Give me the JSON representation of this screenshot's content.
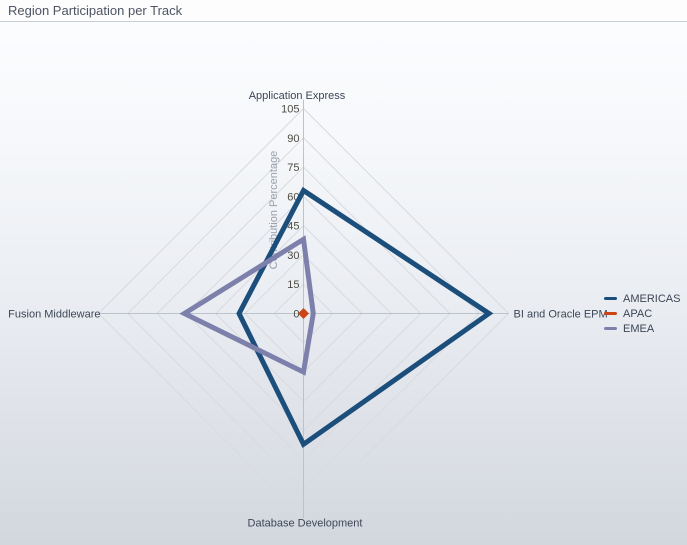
{
  "header": {
    "title": "Region Participation per Track"
  },
  "chart_data": {
    "type": "radar",
    "title": "Region Participation per Track",
    "radial_axis_label": "Contribution Percentage",
    "categories": [
      "Application Express",
      "BI and Oracle EPM",
      "Database Development",
      "Fusion Middleware"
    ],
    "ticks": [
      0,
      15,
      30,
      45,
      60,
      75,
      90,
      105
    ],
    "rlim": [
      0,
      105
    ],
    "grid": true,
    "legend_position": "right",
    "series": [
      {
        "name": "AMERICAS",
        "color": "#1c4e7c",
        "values": [
          63,
          95,
          67,
          33
        ]
      },
      {
        "name": "APAC",
        "color": "#cc4517",
        "values": [
          1,
          1,
          1,
          1
        ]
      },
      {
        "name": "EMEA",
        "color": "#7e80ac",
        "values": [
          38,
          5,
          30,
          61
        ]
      }
    ],
    "colors": {
      "grid_line": "#d8dae0",
      "axis_line": "#bcc2cc",
      "tick_label": "#4c4a42",
      "category_label": "#3d4757",
      "axis_title": "#9aa0ac"
    }
  }
}
